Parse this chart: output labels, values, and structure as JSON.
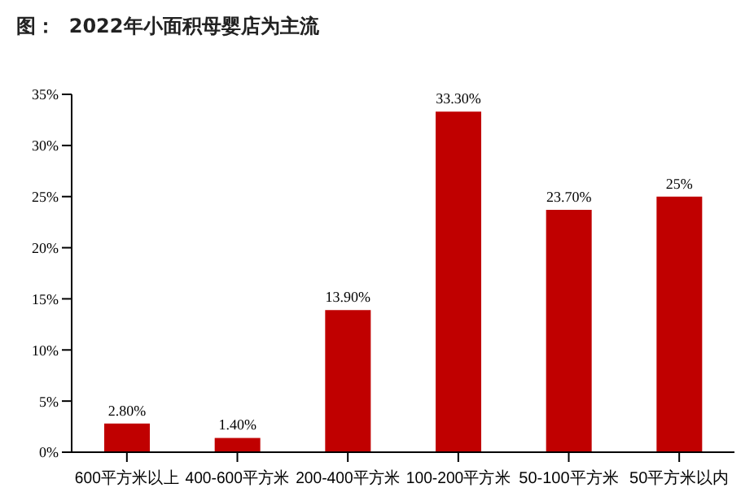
{
  "chart_data": {
    "type": "bar",
    "title": "图：  2022年小面积母婴店为主流",
    "categories": [
      "600平方米以上",
      "400-600平方米",
      "200-400平方米",
      "100-200平方米",
      "50-100平方米",
      "50平方米以内"
    ],
    "values": [
      2.8,
      1.4,
      13.9,
      33.3,
      23.7,
      25
    ],
    "value_labels": [
      "2.80%",
      "1.40%",
      "13.90%",
      "33.30%",
      "23.70%",
      "25%"
    ],
    "color": "#c00000",
    "ylim": [
      0,
      35
    ],
    "yticks": [
      {
        "value": 0,
        "label": "0%"
      },
      {
        "value": 5,
        "label": "5%"
      },
      {
        "value": 10,
        "label": "10%"
      },
      {
        "value": 15,
        "label": "15%"
      },
      {
        "value": 20,
        "label": "20%"
      },
      {
        "value": 25,
        "label": "25%"
      },
      {
        "value": 30,
        "label": "30%"
      },
      {
        "value": 35,
        "label": "35%"
      }
    ],
    "grid": false
  }
}
